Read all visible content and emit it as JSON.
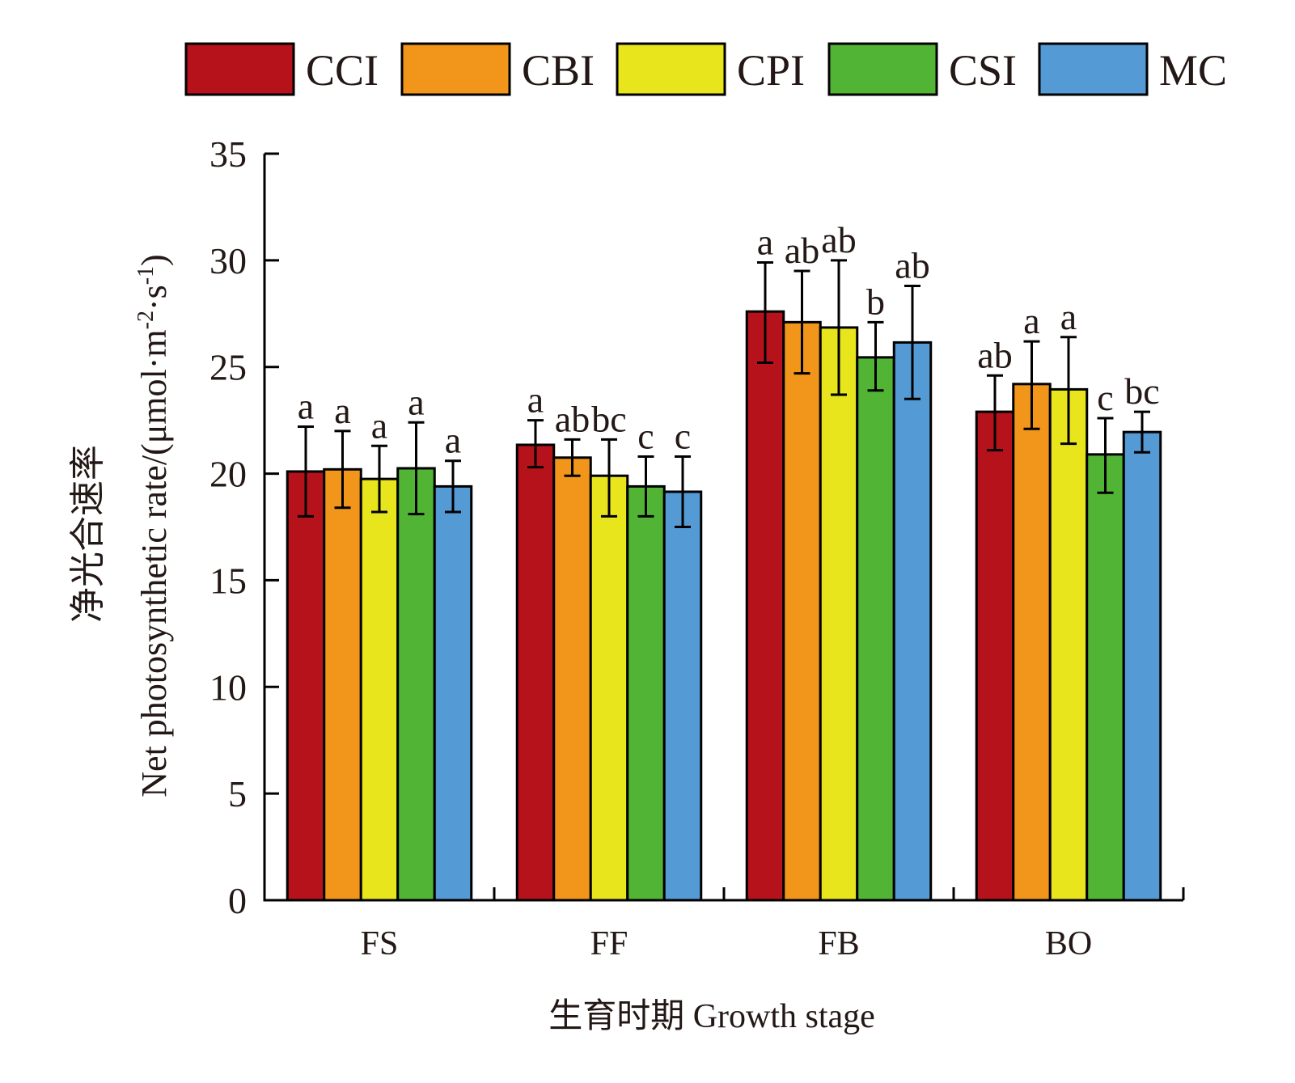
{
  "chart_data": {
    "type": "bar",
    "title": "",
    "xlabel": "生育时期 Growth stage",
    "ylabel_cn": "净光合速率",
    "ylabel_en_main": "Net photosynthetic rate/(μmol·m",
    "ylabel_en_sup1": "-2",
    "ylabel_en_mid": "·s",
    "ylabel_en_sup2": "-1",
    "ylabel_en_end": ")",
    "ylim": [
      0,
      35
    ],
    "yticks": [
      0,
      5,
      10,
      15,
      20,
      25,
      30,
      35
    ],
    "grid": false,
    "legend_position": "top",
    "categories": [
      "FS",
      "FF",
      "FB",
      "BO"
    ],
    "series": [
      {
        "name": "CCI",
        "color": "#b5121b",
        "values": [
          20.1,
          21.35,
          27.6,
          22.9
        ],
        "err_low": [
          18.0,
          20.3,
          25.2,
          21.1
        ],
        "err_high": [
          22.2,
          22.5,
          29.9,
          24.6
        ],
        "letters": [
          "a",
          "a",
          "a",
          "ab"
        ]
      },
      {
        "name": "CBI",
        "color": "#f1961b",
        "values": [
          20.2,
          20.75,
          27.1,
          24.2
        ],
        "err_low": [
          18.4,
          19.9,
          24.7,
          22.1
        ],
        "err_high": [
          22.0,
          21.6,
          29.5,
          26.2
        ],
        "letters": [
          "a",
          "ab",
          "ab",
          "a"
        ]
      },
      {
        "name": "CPI",
        "color": "#e8e51d",
        "values": [
          19.75,
          19.9,
          26.85,
          23.95
        ],
        "err_low": [
          18.2,
          18.0,
          23.7,
          21.4
        ],
        "err_high": [
          21.3,
          21.6,
          30.0,
          26.4
        ],
        "letters": [
          "a",
          "bc",
          "ab",
          "a"
        ]
      },
      {
        "name": "CSI",
        "color": "#52b434",
        "values": [
          20.25,
          19.4,
          25.45,
          20.9
        ],
        "err_low": [
          18.1,
          18.0,
          23.9,
          19.1
        ],
        "err_high": [
          22.4,
          20.8,
          27.1,
          22.6
        ],
        "letters": [
          "a",
          "c",
          "b",
          "c"
        ]
      },
      {
        "name": "MC",
        "color": "#549ad5",
        "values": [
          19.4,
          19.15,
          26.15,
          21.95
        ],
        "err_low": [
          18.2,
          17.5,
          23.5,
          21.0
        ],
        "err_high": [
          20.6,
          20.8,
          28.8,
          22.9
        ],
        "letters": [
          "a",
          "c",
          "ab",
          "bc"
        ]
      }
    ]
  }
}
